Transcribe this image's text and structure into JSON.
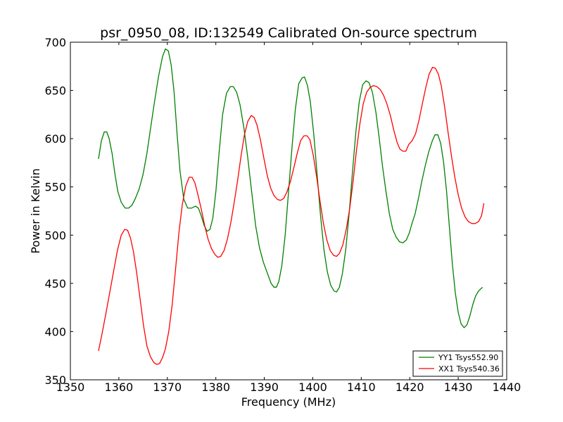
{
  "chart_data": {
    "type": "line",
    "title": "psr_0950_08, ID:132549 Calibrated On-source spectrum",
    "xlabel": "Frequency (MHz)",
    "ylabel": "Power in Kelvin",
    "xlim": [
      1350,
      1440
    ],
    "ylim": [
      350,
      700
    ],
    "xticks": [
      1350,
      1360,
      1370,
      1380,
      1390,
      1400,
      1410,
      1420,
      1430,
      1440
    ],
    "yticks": [
      350,
      400,
      450,
      500,
      550,
      600,
      650,
      700
    ],
    "grid": false,
    "legend_position": "lower-right",
    "series": [
      {
        "name": "YY1 Tsys552.90",
        "color": "#008000",
        "points": [
          [
            1355.8,
            579
          ],
          [
            1356.4,
            598
          ],
          [
            1357.0,
            607
          ],
          [
            1357.5,
            607
          ],
          [
            1358.0,
            600
          ],
          [
            1358.6,
            585
          ],
          [
            1359.2,
            563
          ],
          [
            1359.8,
            545
          ],
          [
            1360.5,
            534
          ],
          [
            1361.3,
            528
          ],
          [
            1362.0,
            528
          ],
          [
            1362.7,
            531
          ],
          [
            1363.4,
            538
          ],
          [
            1364.2,
            548
          ],
          [
            1365.0,
            563
          ],
          [
            1365.8,
            585
          ],
          [
            1366.6,
            613
          ],
          [
            1367.4,
            640
          ],
          [
            1368.2,
            665
          ],
          [
            1369.0,
            685
          ],
          [
            1369.6,
            693
          ],
          [
            1370.2,
            691
          ],
          [
            1370.8,
            676
          ],
          [
            1371.4,
            648
          ],
          [
            1372.0,
            605
          ],
          [
            1372.6,
            567
          ],
          [
            1373.4,
            537
          ],
          [
            1374.2,
            528
          ],
          [
            1375.0,
            528
          ],
          [
            1375.8,
            530
          ],
          [
            1376.4,
            528
          ],
          [
            1377.0,
            520
          ],
          [
            1377.6,
            510
          ],
          [
            1378.2,
            504
          ],
          [
            1378.8,
            506
          ],
          [
            1379.4,
            518
          ],
          [
            1380.0,
            545
          ],
          [
            1380.7,
            587
          ],
          [
            1381.4,
            625
          ],
          [
            1382.2,
            647
          ],
          [
            1383.0,
            654
          ],
          [
            1383.6,
            654
          ],
          [
            1384.3,
            648
          ],
          [
            1385.0,
            635
          ],
          [
            1385.8,
            611
          ],
          [
            1386.6,
            580
          ],
          [
            1387.4,
            545
          ],
          [
            1388.2,
            510
          ],
          [
            1389.0,
            487
          ],
          [
            1389.8,
            472
          ],
          [
            1390.6,
            461
          ],
          [
            1391.4,
            450
          ],
          [
            1392.0,
            446
          ],
          [
            1392.5,
            446
          ],
          [
            1393.0,
            452
          ],
          [
            1393.6,
            468
          ],
          [
            1394.3,
            500
          ],
          [
            1395.0,
            545
          ],
          [
            1395.7,
            590
          ],
          [
            1396.4,
            630
          ],
          [
            1397.1,
            657
          ],
          [
            1397.8,
            663
          ],
          [
            1398.3,
            664
          ],
          [
            1398.9,
            655
          ],
          [
            1399.5,
            638
          ],
          [
            1400.2,
            605
          ],
          [
            1400.9,
            563
          ],
          [
            1401.6,
            520
          ],
          [
            1402.3,
            485
          ],
          [
            1403.0,
            462
          ],
          [
            1403.7,
            448
          ],
          [
            1404.4,
            442
          ],
          [
            1404.9,
            441
          ],
          [
            1405.5,
            446
          ],
          [
            1406.1,
            460
          ],
          [
            1406.8,
            485
          ],
          [
            1407.5,
            522
          ],
          [
            1408.2,
            566
          ],
          [
            1408.9,
            608
          ],
          [
            1409.6,
            639
          ],
          [
            1410.3,
            656
          ],
          [
            1411.0,
            660
          ],
          [
            1411.6,
            658
          ],
          [
            1412.3,
            648
          ],
          [
            1413.0,
            628
          ],
          [
            1413.7,
            601
          ],
          [
            1414.4,
            571
          ],
          [
            1415.1,
            545
          ],
          [
            1415.8,
            522
          ],
          [
            1416.5,
            506
          ],
          [
            1417.2,
            498
          ],
          [
            1417.9,
            493
          ],
          [
            1418.6,
            492
          ],
          [
            1419.3,
            495
          ],
          [
            1419.9,
            502
          ],
          [
            1420.4,
            511
          ],
          [
            1421.1,
            522
          ],
          [
            1421.8,
            538
          ],
          [
            1422.5,
            556
          ],
          [
            1423.2,
            572
          ],
          [
            1423.9,
            586
          ],
          [
            1424.6,
            597
          ],
          [
            1425.2,
            604
          ],
          [
            1425.8,
            604
          ],
          [
            1426.4,
            595
          ],
          [
            1427.0,
            575
          ],
          [
            1427.6,
            545
          ],
          [
            1428.2,
            507
          ],
          [
            1428.8,
            470
          ],
          [
            1429.4,
            440
          ],
          [
            1430.0,
            420
          ],
          [
            1430.6,
            408
          ],
          [
            1431.2,
            404
          ],
          [
            1431.8,
            407
          ],
          [
            1432.4,
            416
          ],
          [
            1433.0,
            428
          ],
          [
            1433.6,
            437
          ],
          [
            1434.2,
            442
          ],
          [
            1435.0,
            446
          ]
        ]
      },
      {
        "name": "XX1 Tsys540.36",
        "color": "#ff0000",
        "points": [
          [
            1355.8,
            380
          ],
          [
            1356.5,
            397
          ],
          [
            1357.3,
            418
          ],
          [
            1358.1,
            440
          ],
          [
            1358.9,
            462
          ],
          [
            1359.7,
            484
          ],
          [
            1360.5,
            500
          ],
          [
            1361.2,
            506
          ],
          [
            1361.8,
            505
          ],
          [
            1362.4,
            497
          ],
          [
            1363.0,
            483
          ],
          [
            1363.7,
            460
          ],
          [
            1364.4,
            433
          ],
          [
            1365.1,
            406
          ],
          [
            1365.8,
            385
          ],
          [
            1366.5,
            374
          ],
          [
            1367.2,
            368
          ],
          [
            1367.8,
            366
          ],
          [
            1368.4,
            367
          ],
          [
            1369.0,
            373
          ],
          [
            1369.6,
            382
          ],
          [
            1370.3,
            400
          ],
          [
            1371.0,
            428
          ],
          [
            1371.7,
            465
          ],
          [
            1372.4,
            503
          ],
          [
            1373.1,
            532
          ],
          [
            1373.8,
            551
          ],
          [
            1374.5,
            560
          ],
          [
            1375.1,
            560
          ],
          [
            1375.7,
            554
          ],
          [
            1376.3,
            542
          ],
          [
            1377.0,
            527
          ],
          [
            1377.7,
            510
          ],
          [
            1378.4,
            496
          ],
          [
            1379.1,
            486
          ],
          [
            1379.8,
            480
          ],
          [
            1380.4,
            477
          ],
          [
            1381.0,
            478
          ],
          [
            1381.7,
            484
          ],
          [
            1382.4,
            496
          ],
          [
            1383.1,
            513
          ],
          [
            1383.8,
            534
          ],
          [
            1384.5,
            557
          ],
          [
            1385.2,
            582
          ],
          [
            1385.9,
            604
          ],
          [
            1386.6,
            618
          ],
          [
            1387.3,
            624
          ],
          [
            1387.9,
            622
          ],
          [
            1388.5,
            614
          ],
          [
            1389.2,
            599
          ],
          [
            1389.9,
            580
          ],
          [
            1390.6,
            562
          ],
          [
            1391.3,
            549
          ],
          [
            1392.0,
            541
          ],
          [
            1392.7,
            537
          ],
          [
            1393.3,
            536
          ],
          [
            1394.0,
            538
          ],
          [
            1394.7,
            545
          ],
          [
            1395.4,
            556
          ],
          [
            1396.1,
            570
          ],
          [
            1396.8,
            585
          ],
          [
            1397.5,
            598
          ],
          [
            1398.2,
            603
          ],
          [
            1398.8,
            603
          ],
          [
            1399.4,
            599
          ],
          [
            1400.1,
            583
          ],
          [
            1400.8,
            560
          ],
          [
            1401.5,
            535
          ],
          [
            1402.2,
            512
          ],
          [
            1402.9,
            495
          ],
          [
            1403.6,
            484
          ],
          [
            1404.3,
            479
          ],
          [
            1404.9,
            478
          ],
          [
            1405.5,
            481
          ],
          [
            1406.2,
            490
          ],
          [
            1406.9,
            506
          ],
          [
            1407.6,
            527
          ],
          [
            1408.3,
            555
          ],
          [
            1409.0,
            587
          ],
          [
            1409.7,
            615
          ],
          [
            1410.4,
            636
          ],
          [
            1411.1,
            648
          ],
          [
            1411.8,
            653
          ],
          [
            1412.5,
            655
          ],
          [
            1413.2,
            654
          ],
          [
            1413.9,
            651
          ],
          [
            1414.6,
            645
          ],
          [
            1415.3,
            636
          ],
          [
            1416.0,
            624
          ],
          [
            1416.7,
            609
          ],
          [
            1417.4,
            596
          ],
          [
            1418.0,
            589
          ],
          [
            1418.6,
            587
          ],
          [
            1419.2,
            587
          ],
          [
            1419.8,
            594
          ],
          [
            1420.5,
            598
          ],
          [
            1421.2,
            605
          ],
          [
            1421.9,
            619
          ],
          [
            1422.6,
            636
          ],
          [
            1423.3,
            653
          ],
          [
            1424.0,
            667
          ],
          [
            1424.7,
            674
          ],
          [
            1425.3,
            673
          ],
          [
            1425.9,
            667
          ],
          [
            1426.5,
            655
          ],
          [
            1427.2,
            633
          ],
          [
            1427.9,
            607
          ],
          [
            1428.6,
            582
          ],
          [
            1429.3,
            560
          ],
          [
            1430.0,
            542
          ],
          [
            1430.7,
            528
          ],
          [
            1431.4,
            519
          ],
          [
            1432.1,
            514
          ],
          [
            1432.8,
            512
          ],
          [
            1433.5,
            512
          ],
          [
            1434.2,
            514
          ],
          [
            1434.8,
            520
          ],
          [
            1435.3,
            533
          ]
        ]
      }
    ]
  }
}
